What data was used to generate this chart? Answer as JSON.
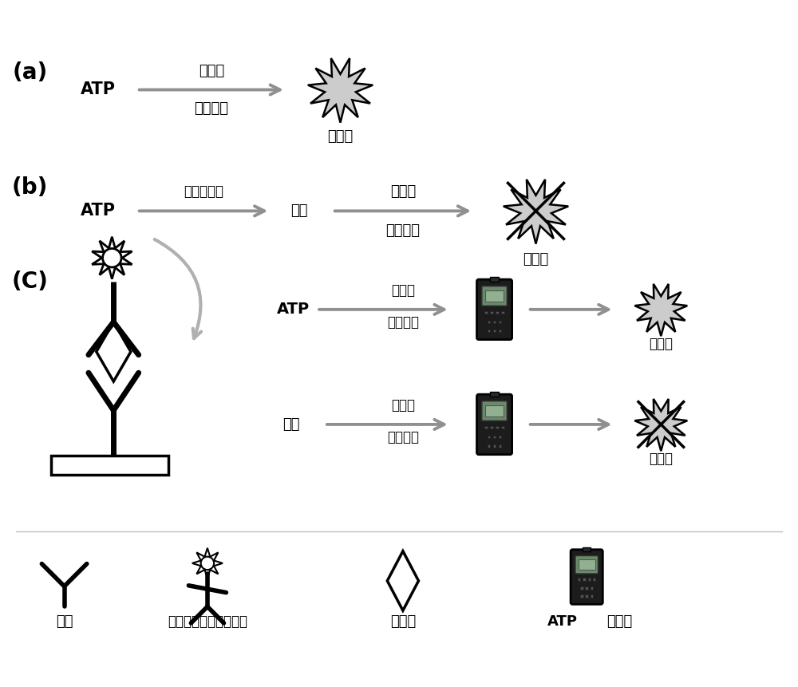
{
  "bg_color": "#ffffff",
  "text_color": "#000000",
  "arrow_color": "#909090",
  "section_a_label": "(a)",
  "section_b_label": "(b)",
  "section_c_label": "(C)",
  "atp_label": "ATP",
  "luciferin_label": "荧光素",
  "luciferase_label": "荧光素酶",
  "strong_light_label": "发光强",
  "weak_light_label": "发光弱",
  "alkaline_phosphatase_label": "碱性磷酸酶",
  "adenosine_label": "腺苷",
  "legend_primary_ab": "一抗",
  "legend_secondary_ab": "碱性磷酸酶标记的二抗",
  "legend_analyte": "分析物",
  "legend_detector_bold": "ATP",
  "legend_detector_normal": "检测仪"
}
